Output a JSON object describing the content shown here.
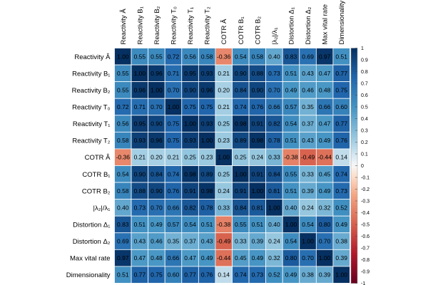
{
  "chart_data": {
    "type": "heatmap",
    "title": "",
    "variables": [
      "Reactivity Â",
      "Reactivity B₁",
      "Reactivity B₂",
      "Reactivity T₀",
      "Reactivity T₁",
      "Reactivity T₂",
      "COTR Â",
      "COTR B₁",
      "COTR B₂",
      "|λ₂|/λ₁",
      "Distortion Δ₁",
      "Distortion Δ₂",
      "Max vital rate",
      "Dimensionality"
    ],
    "matrix": [
      [
        1.0,
        0.55,
        0.55,
        0.72,
        0.56,
        0.58,
        -0.36,
        0.54,
        0.58,
        0.4,
        0.83,
        0.69,
        0.97,
        0.51
      ],
      [
        0.55,
        1.0,
        0.96,
        0.71,
        0.95,
        0.93,
        0.21,
        0.9,
        0.88,
        0.73,
        0.51,
        0.43,
        0.47,
        0.77
      ],
      [
        0.55,
        0.96,
        1.0,
        0.7,
        0.9,
        0.96,
        0.2,
        0.84,
        0.9,
        0.7,
        0.49,
        0.46,
        0.48,
        0.75
      ],
      [
        0.72,
        0.71,
        0.7,
        1.0,
        0.75,
        0.75,
        0.21,
        0.74,
        0.76,
        0.66,
        0.57,
        0.35,
        0.66,
        0.6
      ],
      [
        0.56,
        0.95,
        0.9,
        0.75,
        1.0,
        0.93,
        0.25,
        0.98,
        0.91,
        0.82,
        0.54,
        0.37,
        0.47,
        0.77
      ],
      [
        0.58,
        0.93,
        0.96,
        0.75,
        0.93,
        1.0,
        0.23,
        0.89,
        0.98,
        0.78,
        0.51,
        0.43,
        0.49,
        0.76
      ],
      [
        -0.36,
        0.21,
        0.2,
        0.21,
        0.25,
        0.23,
        1.0,
        0.25,
        0.24,
        0.33,
        -0.38,
        -0.49,
        -0.44,
        0.14
      ],
      [
        0.54,
        0.9,
        0.84,
        0.74,
        0.98,
        0.89,
        0.25,
        1.0,
        0.91,
        0.84,
        0.55,
        0.33,
        0.45,
        0.74
      ],
      [
        0.58,
        0.88,
        0.9,
        0.76,
        0.91,
        0.98,
        0.24,
        0.91,
        1.0,
        0.81,
        0.51,
        0.39,
        0.49,
        0.73
      ],
      [
        0.4,
        0.73,
        0.7,
        0.66,
        0.82,
        0.78,
        0.33,
        0.84,
        0.81,
        1.0,
        0.4,
        0.24,
        0.32,
        0.52
      ],
      [
        0.83,
        0.51,
        0.49,
        0.57,
        0.54,
        0.51,
        -0.38,
        0.55,
        0.51,
        0.4,
        1.0,
        0.54,
        0.8,
        0.49
      ],
      [
        0.69,
        0.43,
        0.46,
        0.35,
        0.37,
        0.43,
        -0.49,
        0.33,
        0.39,
        0.24,
        0.54,
        1.0,
        0.7,
        0.38
      ],
      [
        0.97,
        0.47,
        0.48,
        0.66,
        0.47,
        0.49,
        -0.44,
        0.45,
        0.49,
        0.32,
        0.8,
        0.7,
        1.0,
        0.39
      ],
      [
        0.51,
        0.77,
        0.75,
        0.6,
        0.77,
        0.76,
        0.14,
        0.74,
        0.73,
        0.52,
        0.49,
        0.38,
        0.39,
        1.0
      ]
    ],
    "value_range": [
      -1,
      1
    ],
    "colorbar_ticks": [
      "1",
      "0.9",
      "0.8",
      "0.7",
      "0.6",
      "0.5",
      "0.4",
      "0.3",
      "0.2",
      "0.1",
      "0",
      "-0.1",
      "-0.2",
      "-0.3",
      "-0.4",
      "-0.5",
      "-0.6",
      "-0.7",
      "-0.8",
      "-0.9",
      "-1"
    ],
    "colorbar_tick_values": [
      1,
      0.9,
      0.8,
      0.7,
      0.6,
      0.5,
      0.4,
      0.3,
      0.2,
      0.1,
      0,
      -0.1,
      -0.2,
      -0.3,
      -0.4,
      -0.5,
      -0.6,
      -0.7,
      -0.8,
      -0.9,
      -1
    ],
    "colors": {
      "strong_negative": "#67001f",
      "negative": "#d6604d",
      "neutral": "#f7f7f7",
      "positive": "#4393c3",
      "strong_positive": "#053061"
    }
  }
}
